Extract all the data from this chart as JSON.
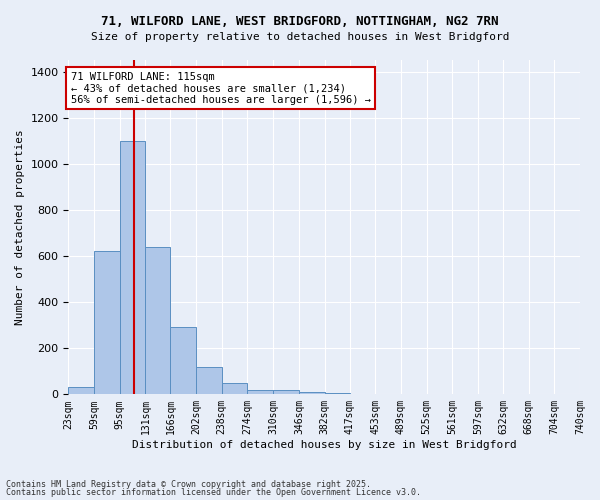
{
  "title1": "71, WILFORD LANE, WEST BRIDGFORD, NOTTINGHAM, NG2 7RN",
  "title2": "Size of property relative to detached houses in West Bridgford",
  "xlabel": "Distribution of detached houses by size in West Bridgford",
  "ylabel": "Number of detached properties",
  "bar_color": "#aec6e8",
  "bar_edge_color": "#5a8fc2",
  "bg_color": "#e8eef8",
  "grid_color": "#ffffff",
  "bin_labels": [
    "23sqm",
    "59sqm",
    "95sqm",
    "131sqm",
    "166sqm",
    "202sqm",
    "238sqm",
    "274sqm",
    "310sqm",
    "346sqm",
    "382sqm",
    "417sqm",
    "453sqm",
    "489sqm",
    "525sqm",
    "561sqm",
    "597sqm",
    "632sqm",
    "668sqm",
    "704sqm",
    "740sqm"
  ],
  "bar_values": [
    30,
    620,
    1100,
    640,
    290,
    120,
    50,
    20,
    20,
    10,
    5,
    0,
    0,
    0,
    0,
    0,
    0,
    0,
    0,
    0
  ],
  "property_size": 115,
  "bin_edges": [
    23,
    59,
    95,
    131,
    166,
    202,
    238,
    274,
    310,
    346,
    382,
    417,
    453,
    489,
    525,
    561,
    597,
    632,
    668,
    704,
    740
  ],
  "vline_color": "#cc0000",
  "annotation_line1": "71 WILFORD LANE: 115sqm",
  "annotation_line2": "← 43% of detached houses are smaller (1,234)",
  "annotation_line3": "56% of semi-detached houses are larger (1,596) →",
  "annotation_box_color": "#ffffff",
  "annotation_box_edge": "#cc0000",
  "ylim": [
    0,
    1450
  ],
  "yticks": [
    0,
    200,
    400,
    600,
    800,
    1000,
    1200,
    1400
  ],
  "footer1": "Contains HM Land Registry data © Crown copyright and database right 2025.",
  "footer2": "Contains public sector information licensed under the Open Government Licence v3.0."
}
